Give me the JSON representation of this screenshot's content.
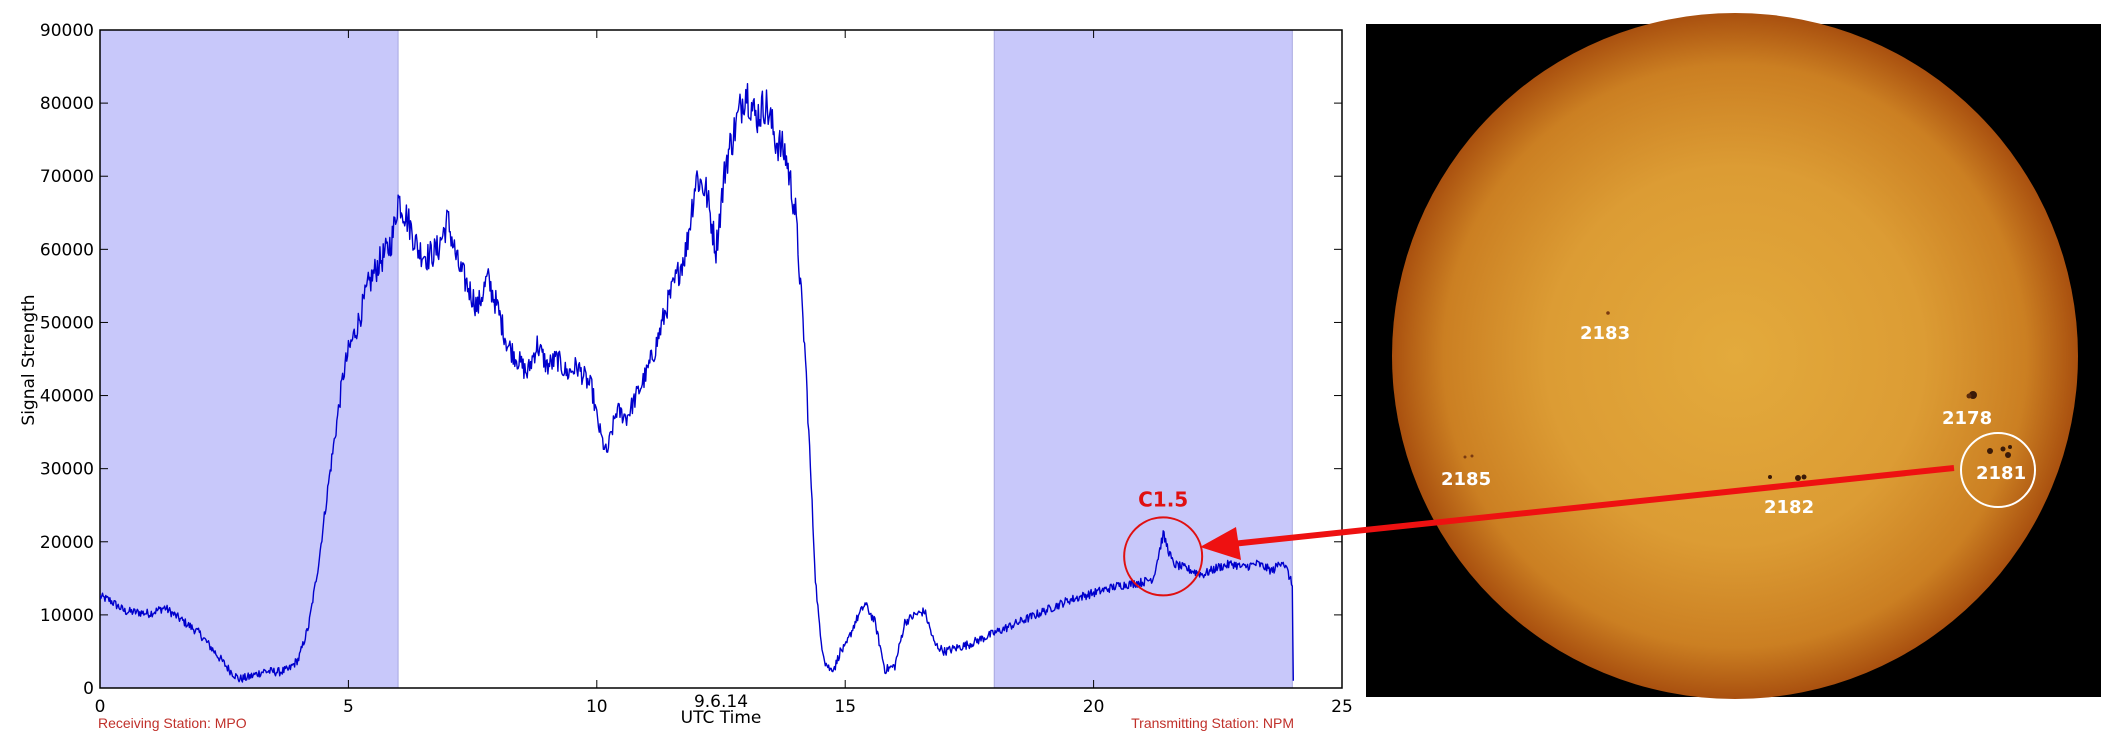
{
  "chart_data": {
    "type": "line",
    "title": "",
    "xlabel": "UTC Time",
    "ylabel": "Signal Strength",
    "date_label": "9.6.14",
    "xlim": [
      0,
      25
    ],
    "ylim": [
      0,
      90000
    ],
    "xticks": [
      0,
      5,
      10,
      15,
      20,
      25
    ],
    "yticks": [
      0,
      10000,
      20000,
      30000,
      40000,
      50000,
      60000,
      70000,
      80000,
      90000
    ],
    "shaded_regions": [
      [
        0,
        6
      ],
      [
        18,
        24
      ]
    ],
    "line_color": "#0000cc",
    "shade_color": "#c8c8fa",
    "series": [
      {
        "x": [
          0,
          0.2,
          0.5,
          1.0,
          1.3,
          1.6,
          2.0,
          2.3,
          2.6,
          2.8,
          3.0,
          3.3,
          3.6,
          3.8,
          4.0,
          4.2,
          4.4,
          4.6,
          4.8,
          4.9,
          5.0,
          5.2,
          5.4,
          5.6,
          5.8,
          5.9,
          6.0,
          6.2,
          6.4,
          6.6,
          6.8,
          7.0,
          7.2,
          7.4,
          7.6,
          7.8,
          8.0,
          8.2,
          8.4,
          8.6,
          8.8,
          9.0,
          9.2,
          9.4,
          9.6,
          9.8,
          9.9,
          10.0,
          10.1,
          10.2,
          10.4,
          10.6,
          10.8,
          11.0,
          11.2,
          11.4,
          11.6,
          11.8,
          12.0,
          12.2,
          12.4,
          12.6,
          12.8,
          13.0,
          13.2,
          13.4,
          13.6,
          13.8,
          14.0,
          14.1,
          14.2,
          14.3,
          14.4,
          14.5,
          14.6,
          14.7,
          14.8,
          14.9,
          15.0,
          15.2,
          15.4,
          15.6,
          15.8,
          16.0,
          16.2,
          16.4,
          16.6,
          16.8,
          17.0,
          17.5,
          18.0,
          18.5,
          19.0,
          19.5,
          20.0,
          20.5,
          21.0,
          21.2,
          21.3,
          21.4,
          21.6,
          21.8,
          22.0,
          22.2,
          22.5,
          22.8,
          23.0,
          23.3,
          23.6,
          23.8,
          23.9,
          24.0,
          24.02
        ],
        "values": [
          12500,
          12000,
          10500,
          10200,
          11000,
          9500,
          7500,
          5000,
          2500,
          1200,
          1500,
          2300,
          2200,
          2500,
          4000,
          8500,
          17000,
          28000,
          38000,
          43000,
          46000,
          50000,
          55000,
          58000,
          60000,
          62000,
          67000,
          64000,
          60000,
          59000,
          60000,
          64000,
          58000,
          55000,
          52000,
          56000,
          52000,
          47000,
          45000,
          43000,
          47000,
          44000,
          45000,
          43000,
          44000,
          42000,
          41000,
          37000,
          34000,
          32000,
          38000,
          37000,
          40000,
          43000,
          47000,
          52000,
          56000,
          60000,
          70000,
          68000,
          60000,
          72000,
          77000,
          82000,
          78000,
          80000,
          75000,
          73000,
          65000,
          55000,
          45000,
          30000,
          15000,
          7000,
          3500,
          2500,
          3000,
          5000,
          5500,
          9000,
          11500,
          9000,
          2500,
          3000,
          9000,
          10000,
          10500,
          6000,
          5000,
          6000,
          7500,
          9000,
          10500,
          12000,
          13000,
          14000,
          14500,
          15000,
          18000,
          21000,
          17000,
          16500,
          16000,
          15500,
          16500,
          17000,
          16500,
          17000,
          16000,
          17500,
          16000,
          14000,
          1000
        ]
      }
    ],
    "annotations": [
      {
        "text": "C1.5",
        "x": 21.4,
        "y": 18000
      }
    ]
  },
  "stations": {
    "receiving": "Receiving Station: MPO",
    "transmitting": "Transmitting Station: NPM"
  },
  "sun": {
    "sunspot_labels": [
      "2183",
      "2178",
      "2185",
      "2181",
      "2182"
    ],
    "colors": {
      "center": "#e0a63a",
      "limb": "#b85a12",
      "background": "#000000",
      "arrow": "#ee1111"
    }
  }
}
